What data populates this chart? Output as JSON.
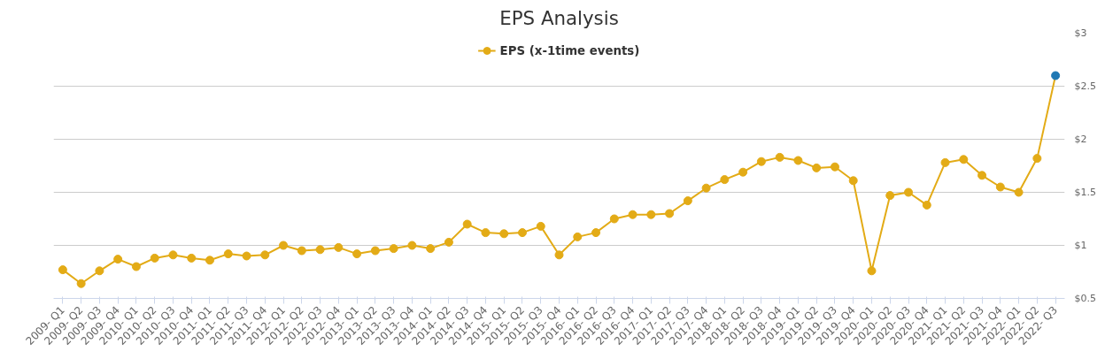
{
  "chart_data": {
    "type": "line",
    "title": "EPS Analysis",
    "categories": [
      "2009- Q1",
      "2009- Q2",
      "2009- Q3",
      "2009- Q4",
      "2010- Q1",
      "2010- Q2",
      "2010- Q3",
      "2010- Q4",
      "2011- Q1",
      "2011- Q2",
      "2011- Q3",
      "2011- Q4",
      "2012- Q1",
      "2012- Q2",
      "2012- Q3",
      "2012- Q4",
      "2013- Q1",
      "2013- Q2",
      "2013- Q3",
      "2013- Q4",
      "2014- Q1",
      "2014- Q2",
      "2014- Q3",
      "2014- Q4",
      "2015- Q1",
      "2015- Q2",
      "2015- Q3",
      "2015- Q4",
      "2016- Q1",
      "2016- Q2",
      "2016- Q3",
      "2016- Q4",
      "2017- Q1",
      "2017- Q2",
      "2017- Q3",
      "2017- Q4",
      "2018- Q1",
      "2018- Q2",
      "2018- Q3",
      "2018- Q4",
      "2019- Q1",
      "2019- Q2",
      "2019- Q3",
      "2019- Q4",
      "2020- Q1",
      "2020- Q2",
      "2020- Q3",
      "2020- Q4",
      "2021- Q1",
      "2021- Q2",
      "2021- Q3",
      "2021- Q4",
      "2022- Q1",
      "2022- Q2",
      "2022- Q3"
    ],
    "series": [
      {
        "name": "EPS (x-1time events)",
        "color": "#e3ab16",
        "values": [
          0.77,
          0.64,
          0.76,
          0.87,
          0.8,
          0.88,
          0.91,
          0.88,
          0.86,
          0.92,
          0.9,
          0.91,
          1.0,
          0.95,
          0.96,
          0.98,
          0.92,
          0.95,
          0.97,
          1.0,
          0.97,
          1.03,
          1.2,
          1.12,
          1.11,
          1.12,
          1.18,
          0.91,
          1.08,
          1.12,
          1.25,
          1.29,
          1.29,
          1.3,
          1.42,
          1.54,
          1.62,
          1.69,
          1.79,
          1.83,
          1.8,
          1.73,
          1.74,
          1.61,
          0.76,
          1.47,
          1.5,
          1.38,
          1.78,
          1.81,
          1.66,
          1.55,
          1.5,
          1.82,
          2.6
        ],
        "colors": [
          "#e3ab16",
          "#e3ab16",
          "#e3ab16",
          "#e3ab16",
          "#e3ab16",
          "#e3ab16",
          "#e3ab16",
          "#e3ab16",
          "#e3ab16",
          "#e3ab16",
          "#e3ab16",
          "#e3ab16",
          "#e3ab16",
          "#e3ab16",
          "#e3ab16",
          "#e3ab16",
          "#e3ab16",
          "#e3ab16",
          "#e3ab16",
          "#e3ab16",
          "#e3ab16",
          "#e3ab16",
          "#e3ab16",
          "#e3ab16",
          "#e3ab16",
          "#e3ab16",
          "#e3ab16",
          "#e3ab16",
          "#e3ab16",
          "#e3ab16",
          "#e3ab16",
          "#e3ab16",
          "#e3ab16",
          "#e3ab16",
          "#e3ab16",
          "#e3ab16",
          "#e3ab16",
          "#e3ab16",
          "#e3ab16",
          "#e3ab16",
          "#e3ab16",
          "#e3ab16",
          "#e3ab16",
          "#e3ab16",
          "#e3ab16",
          "#e3ab16",
          "#e3ab16",
          "#e3ab16",
          "#e3ab16",
          "#e3ab16",
          "#e3ab16",
          "#e3ab16",
          "#e3ab16",
          "#e3ab16",
          "#1f78b4"
        ]
      }
    ],
    "ylim": [
      0.5,
      3
    ],
    "yticks": [
      {
        "value": 0.5,
        "label": "$0.5"
      },
      {
        "value": 1,
        "label": "$1"
      },
      {
        "value": 1.5,
        "label": "$1.5"
      },
      {
        "value": 2,
        "label": "$2"
      },
      {
        "value": 2.5,
        "label": "$2.5"
      },
      {
        "value": 3,
        "label": "$3"
      }
    ],
    "grid": "y",
    "legend": "top",
    "marker": "circle",
    "line_style": "solid"
  }
}
